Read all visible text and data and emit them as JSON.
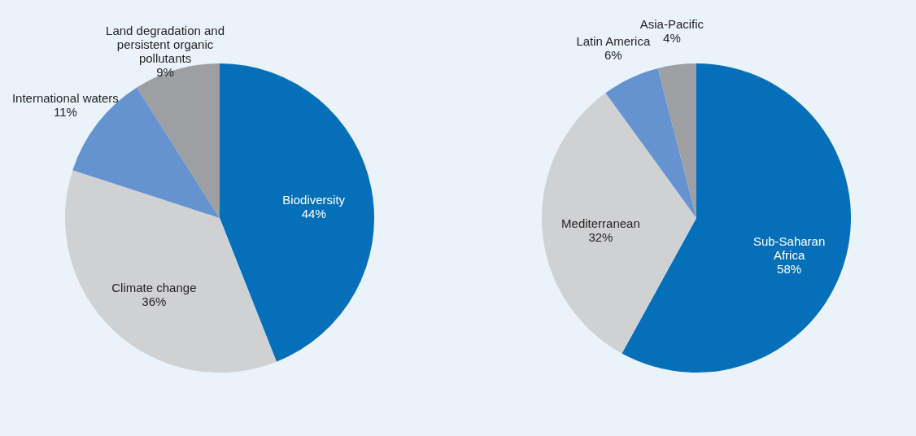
{
  "chart_data": [
    {
      "type": "pie",
      "categories": [
        "Biodiversity",
        "Climate change",
        "International waters",
        "Land degradation and persistent organic pollutants"
      ],
      "values": [
        44,
        36,
        11,
        9
      ],
      "value_labels": [
        "44%",
        "36%",
        "11%",
        "9%"
      ],
      "colors": [
        "#0570b9",
        "#d0d1d3",
        "#6593cf",
        "#9d9fa2"
      ]
    },
    {
      "type": "pie",
      "categories": [
        "Sub-Saharan Africa",
        "Mediterranean",
        "Latin America",
        "Asia-Pacific"
      ],
      "values": [
        58,
        32,
        6,
        4
      ],
      "value_labels": [
        "58%",
        "32%",
        "6%",
        "4%"
      ],
      "colors": [
        "#0570b9",
        "#d0d1d3",
        "#6593cf",
        "#9d9fa2"
      ]
    }
  ]
}
